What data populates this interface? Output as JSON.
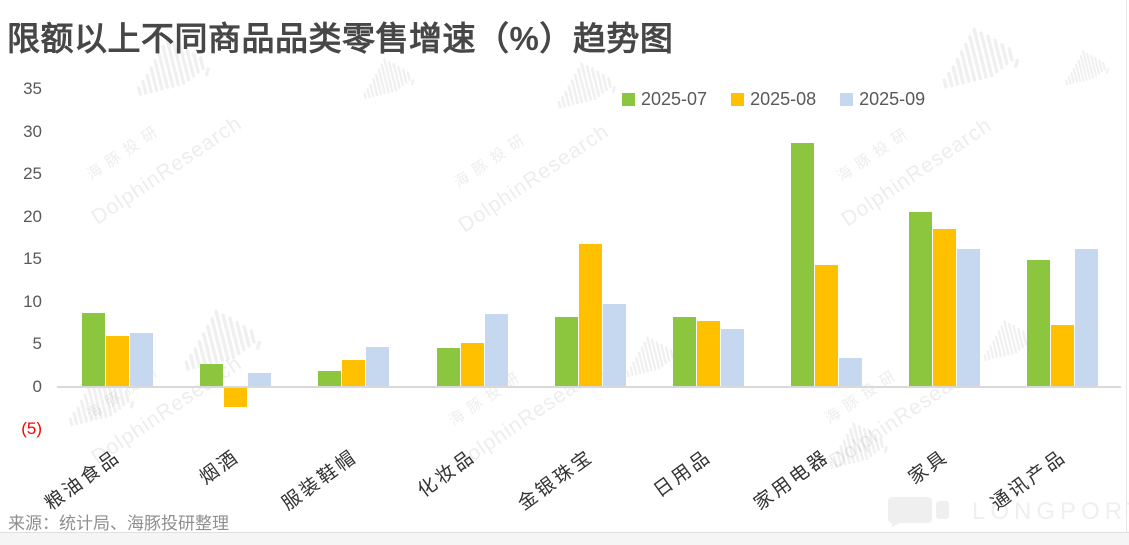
{
  "title": "限额以上不同商品品类零售增速（%）趋势图",
  "source": "来源：统计局、海豚投研整理",
  "watermark": {
    "cn": "海豚投研",
    "en": "DolphinResearch",
    "longport": "LONGPORT"
  },
  "chart_data": {
    "type": "bar",
    "title": "限额以上不同商品品类零售增速（%）趋势图",
    "xlabel": "",
    "ylabel": "",
    "ylim": [
      -5,
      35
    ],
    "grid": false,
    "legend_position": "top-right",
    "negative_tick_color": "#ff0000",
    "categories": [
      "粮油食品",
      "烟酒",
      "服装鞋帽",
      "化妆品",
      "金银珠宝",
      "日用品",
      "家用电器",
      "家具",
      "通讯产品"
    ],
    "series": [
      {
        "name": "2025-07",
        "color": "#8CC63F",
        "values": [
          8.7,
          2.7,
          1.8,
          4.5,
          8.2,
          8.2,
          28.7,
          20.6,
          14.9
        ]
      },
      {
        "name": "2025-08",
        "color": "#FFC000",
        "values": [
          5.9,
          -2.2,
          3.1,
          5.1,
          16.8,
          7.7,
          14.3,
          18.6,
          7.3
        ]
      },
      {
        "name": "2025-09",
        "color": "#C6D8EF",
        "values": [
          6.3,
          1.6,
          4.6,
          8.6,
          9.7,
          6.8,
          3.4,
          16.2,
          16.2
        ]
      }
    ],
    "yticks": [
      {
        "label": "35",
        "value": 35
      },
      {
        "label": "30",
        "value": 30
      },
      {
        "label": "25",
        "value": 25
      },
      {
        "label": "20",
        "value": 20
      },
      {
        "label": "15",
        "value": 15
      },
      {
        "label": "10",
        "value": 10
      },
      {
        "label": "5",
        "value": 5
      },
      {
        "label": "0",
        "value": 0
      },
      {
        "label": "(5)",
        "value": -5,
        "negative": true
      }
    ]
  }
}
